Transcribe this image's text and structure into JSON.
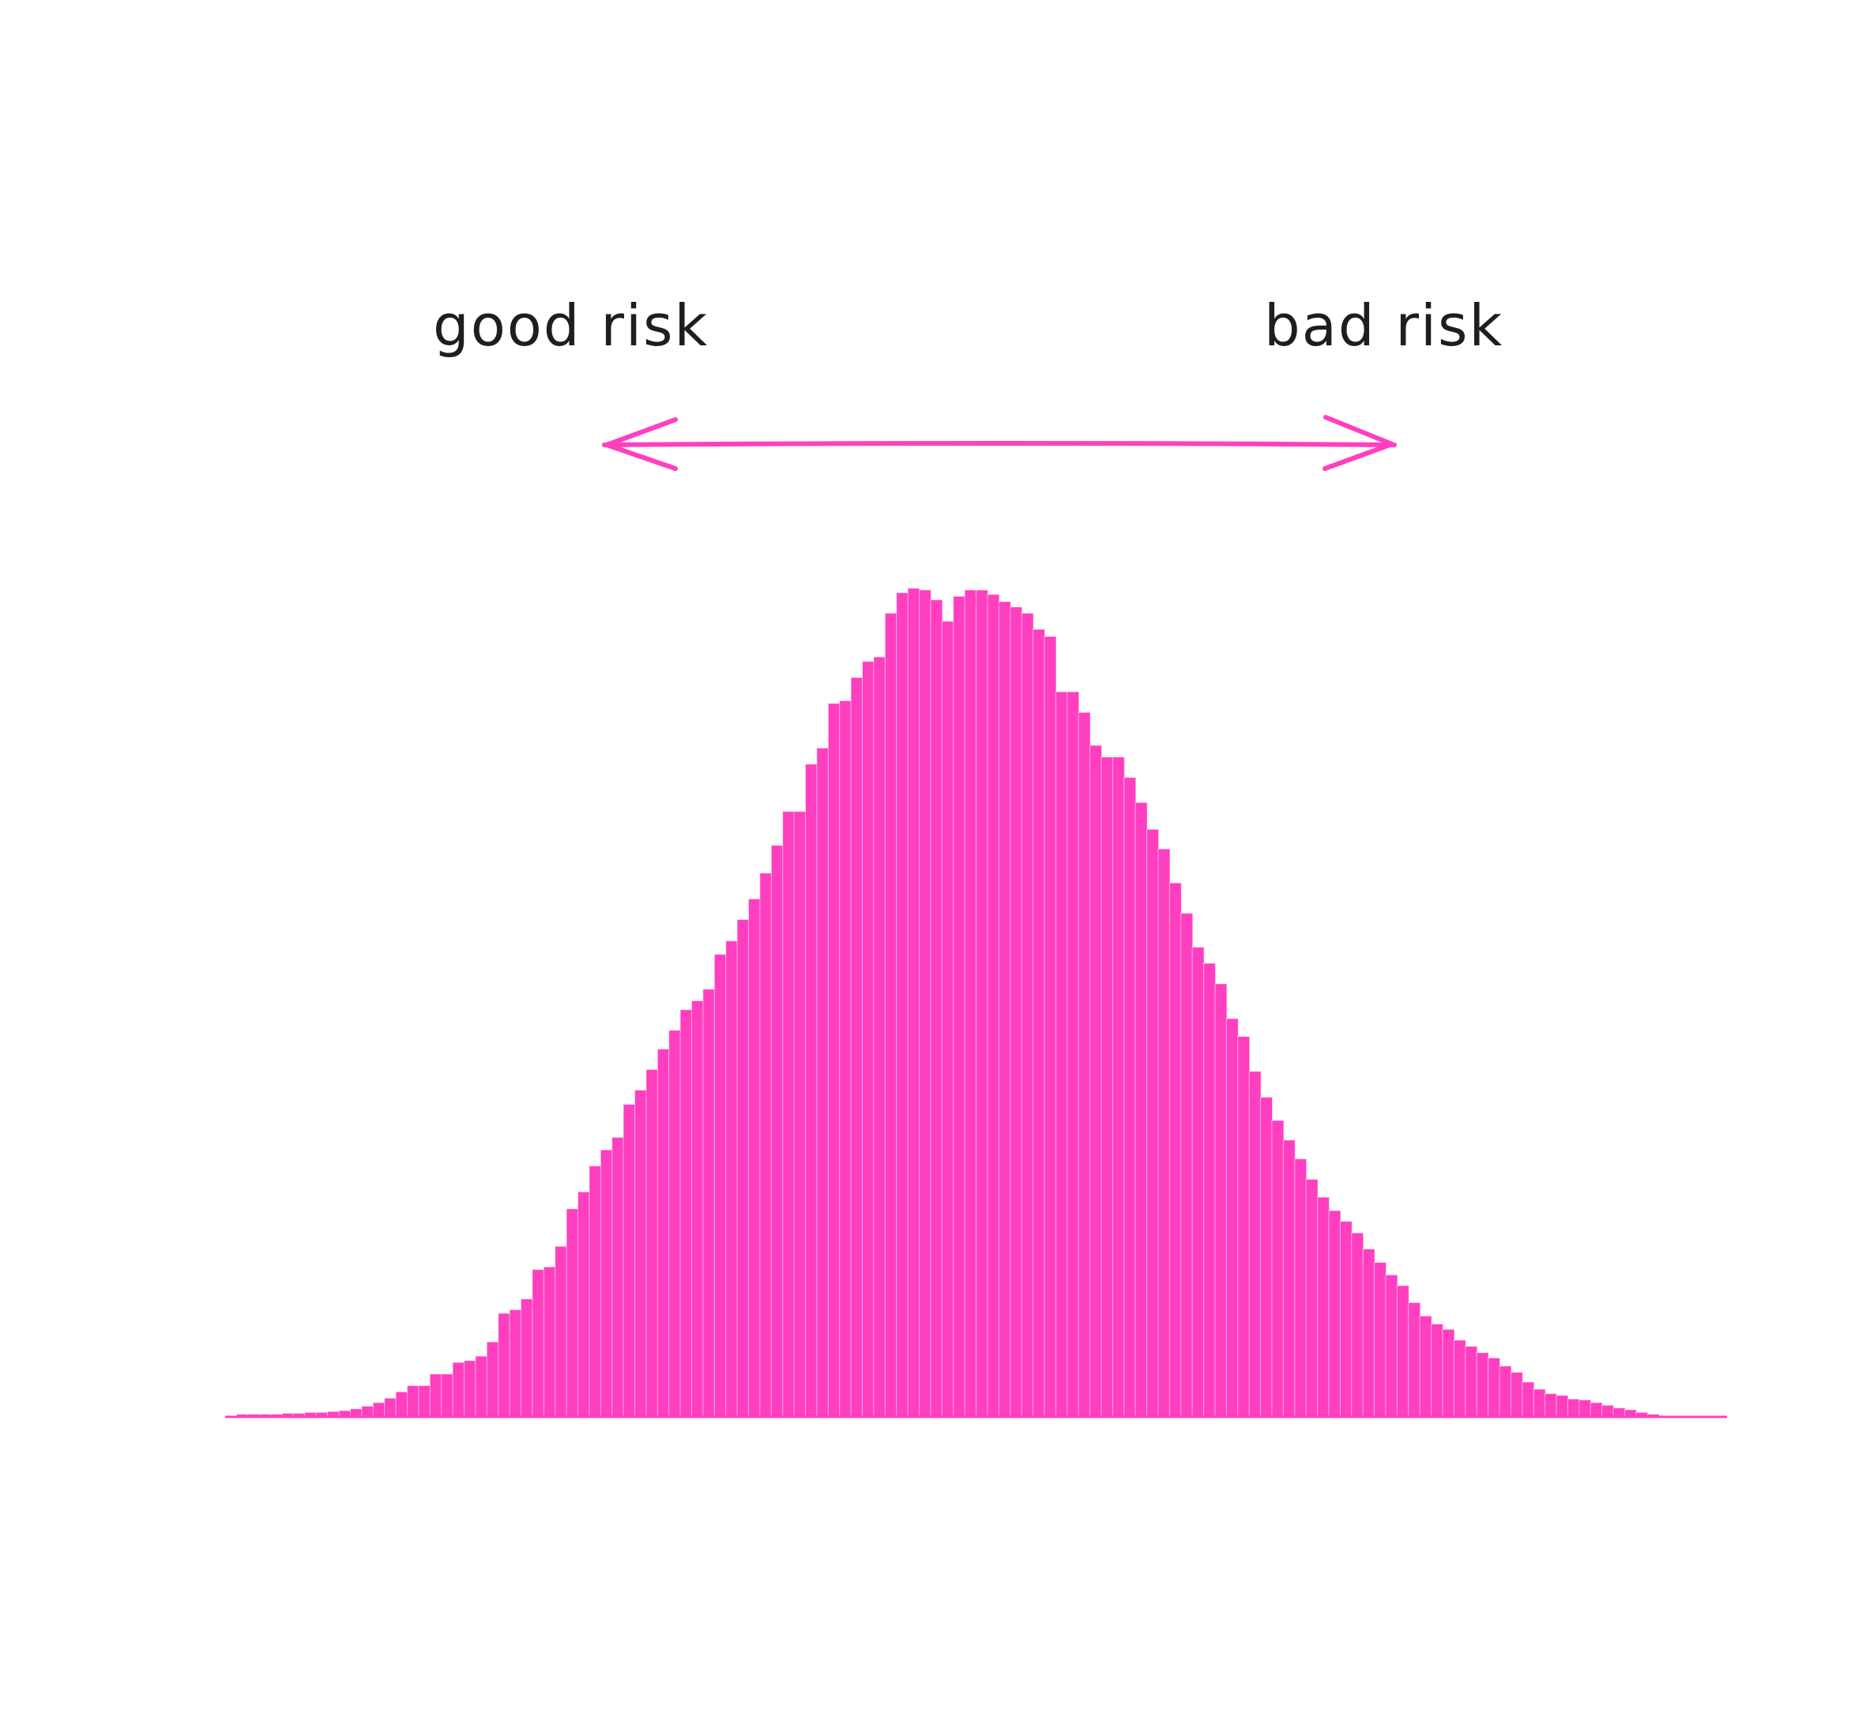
{
  "labels": {
    "left": "good risk",
    "right": "bad risk"
  },
  "colors": {
    "bar": "#ff3fbf",
    "text": "#1e1e1e",
    "arrow": "#ff3fbf"
  },
  "chart_data": {
    "type": "bar",
    "title": "",
    "xlabel": "",
    "ylabel": "",
    "grid": false,
    "ylim": [
      0,
      100
    ],
    "values": [
      0,
      0.3,
      0.3,
      0.3,
      0.3,
      0.4,
      0.4,
      0.5,
      0.5,
      0.6,
      0.7,
      0.9,
      1.2,
      1.6,
      2.1,
      2.8,
      3.5,
      3.5,
      4.8,
      4.8,
      6.1,
      6.3,
      6.8,
      8.4,
      11.6,
      12.0,
      13.2,
      16.5,
      16.8,
      19.1,
      23.3,
      25.2,
      28.1,
      29.9,
      31.3,
      35.0,
      36.6,
      38.9,
      41.2,
      43.3,
      45.6,
      46.6,
      47.9,
      51.8,
      53.3,
      55.7,
      58.0,
      60.9,
      64.0,
      67.8,
      67.8,
      73.1,
      74.9,
      79.9,
      80.2,
      82.8,
      84.6,
      85.1,
      90.0,
      92.3,
      92.8,
      92.6,
      91.5,
      89.1,
      91.9,
      92.6,
      92.6,
      92.1,
      91.3,
      90.7,
      90.0,
      88.2,
      87.4,
      81.2,
      81.2,
      78.9,
      75.2,
      73.9,
      73.9,
      71.6,
      68.8,
      65.8,
      63.6,
      59.8,
      56.4,
      52.6,
      50.8,
      48.5,
      44.6,
      42.6,
      38.7,
      35.8,
      33.2,
      31.0,
      28.9,
      26.6,
      24.6,
      23.1,
      21.9,
      20.6,
      18.8,
      17.3,
      15.9,
      14.7,
      12.8,
      11.3,
      10.4,
      9.8,
      8.6,
      7.9,
      7.2,
      6.6,
      5.7,
      5.0,
      3.9,
      3.1,
      2.6,
      2.4,
      2.0,
      1.9,
      1.6,
      1.3,
      1.0,
      0.8,
      0.5,
      0.3,
      0.1,
      0.1,
      0,
      0,
      0,
      0
    ]
  }
}
